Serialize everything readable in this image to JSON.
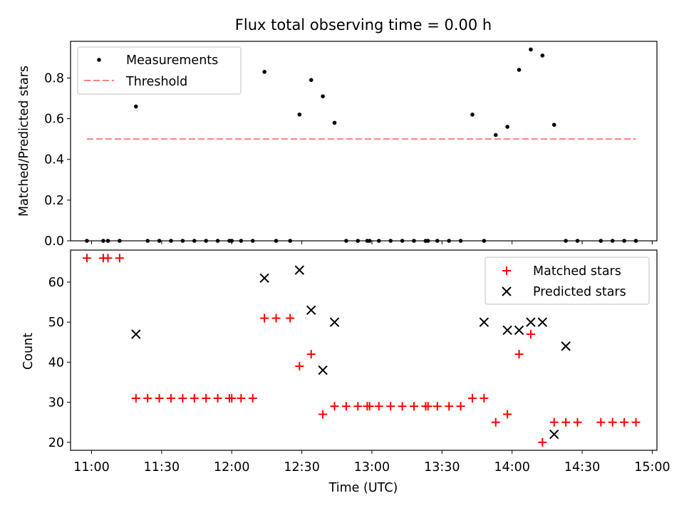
{
  "title": "Flux total observing time = 0.00 h",
  "colors": {
    "measurement": "#000000",
    "threshold": "#ff8080",
    "matched": "#ff0000",
    "predicted": "#000000"
  },
  "chart_data": [
    {
      "type": "scatter",
      "ylabel": "Matched/Predicted stars",
      "xlabel": "",
      "xlim": [
        "10:51",
        "15:02"
      ],
      "ylim": [
        0,
        0.98
      ],
      "yticks": [
        "0.0",
        "0.2",
        "0.4",
        "0.6",
        "0.8"
      ],
      "ytick_values": [
        0,
        0.2,
        0.4,
        0.6,
        0.8
      ],
      "grid": false,
      "legend_position": "top-left",
      "series": [
        {
          "name": "Measurements",
          "marker": "dot",
          "x": [
            "10:58",
            "11:05",
            "11:07",
            "11:12",
            "11:19",
            "11:24",
            "11:29",
            "11:34",
            "11:39",
            "11:44",
            "11:49",
            "11:54",
            "11:59",
            "12:00",
            "12:04",
            "12:09",
            "12:14",
            "12:19",
            "12:25",
            "12:29",
            "12:34",
            "12:39",
            "12:44",
            "12:49",
            "12:54",
            "12:58",
            "12:59",
            "13:03",
            "13:08",
            "13:13",
            "13:18",
            "13:23",
            "13:24",
            "13:28",
            "13:33",
            "13:38",
            "13:43",
            "13:48",
            "13:53",
            "13:58",
            "14:03",
            "14:08",
            "14:13",
            "14:18",
            "14:23",
            "14:28",
            "14:38",
            "14:43",
            "14:48",
            "14:53"
          ],
          "y": [
            0,
            0,
            0,
            0,
            0.66,
            0,
            0,
            0,
            0,
            0,
            0,
            0,
            0,
            0,
            0,
            0,
            0.83,
            0,
            0,
            0.62,
            0.79,
            0.71,
            0.58,
            0,
            0,
            0,
            0,
            0,
            0,
            0,
            0,
            0,
            0,
            0,
            0,
            0,
            0.62,
            0,
            0.52,
            0.56,
            0.84,
            0.94,
            0.91,
            0.57,
            0,
            0,
            0,
            0,
            0,
            0
          ]
        },
        {
          "name": "Threshold",
          "style": "dashed",
          "x": [
            "10:58",
            "14:53"
          ],
          "y": [
            0.5,
            0.5
          ]
        }
      ]
    },
    {
      "type": "scatter",
      "ylabel": "Count",
      "xlabel": "Time (UTC)",
      "xlim": [
        "10:51",
        "15:02"
      ],
      "ylim": [
        18,
        68
      ],
      "yticks": [
        "20",
        "30",
        "40",
        "50",
        "60"
      ],
      "ytick_values": [
        20,
        30,
        40,
        50,
        60
      ],
      "xticks": [
        "11:00",
        "11:30",
        "12:00",
        "12:30",
        "13:00",
        "13:30",
        "14:00",
        "14:30",
        "15:00"
      ],
      "grid": false,
      "legend_position": "top-right",
      "series": [
        {
          "name": "Matched stars",
          "marker": "plus",
          "x": [
            "10:58",
            "11:05",
            "11:07",
            "11:12",
            "11:19",
            "11:24",
            "11:29",
            "11:34",
            "11:39",
            "11:44",
            "11:49",
            "11:54",
            "11:59",
            "12:00",
            "12:04",
            "12:09",
            "12:14",
            "12:19",
            "12:25",
            "12:29",
            "12:34",
            "12:39",
            "12:44",
            "12:49",
            "12:54",
            "12:58",
            "12:59",
            "13:03",
            "13:08",
            "13:13",
            "13:18",
            "13:23",
            "13:24",
            "13:28",
            "13:33",
            "13:38",
            "13:43",
            "13:48",
            "13:53",
            "13:58",
            "14:03",
            "14:08",
            "14:13",
            "14:18",
            "14:23",
            "14:28",
            "14:38",
            "14:43",
            "14:48",
            "14:53"
          ],
          "y": [
            66,
            66,
            66,
            66,
            31,
            31,
            31,
            31,
            31,
            31,
            31,
            31,
            31,
            31,
            31,
            31,
            51,
            51,
            51,
            39,
            42,
            27,
            29,
            29,
            29,
            29,
            29,
            29,
            29,
            29,
            29,
            29,
            29,
            29,
            29,
            29,
            31,
            31,
            25,
            27,
            42,
            47,
            20,
            25,
            25,
            25,
            25,
            25,
            25,
            25
          ]
        },
        {
          "name": "Predicted stars",
          "marker": "x",
          "x": [
            "11:19",
            "12:14",
            "12:29",
            "12:34",
            "12:39",
            "12:44",
            "13:48",
            "13:58",
            "14:03",
            "14:08",
            "14:13",
            "14:18",
            "14:23"
          ],
          "y": [
            47,
            61,
            63,
            53,
            38,
            50,
            50,
            48,
            48,
            50,
            50,
            22,
            44
          ]
        }
      ]
    }
  ]
}
